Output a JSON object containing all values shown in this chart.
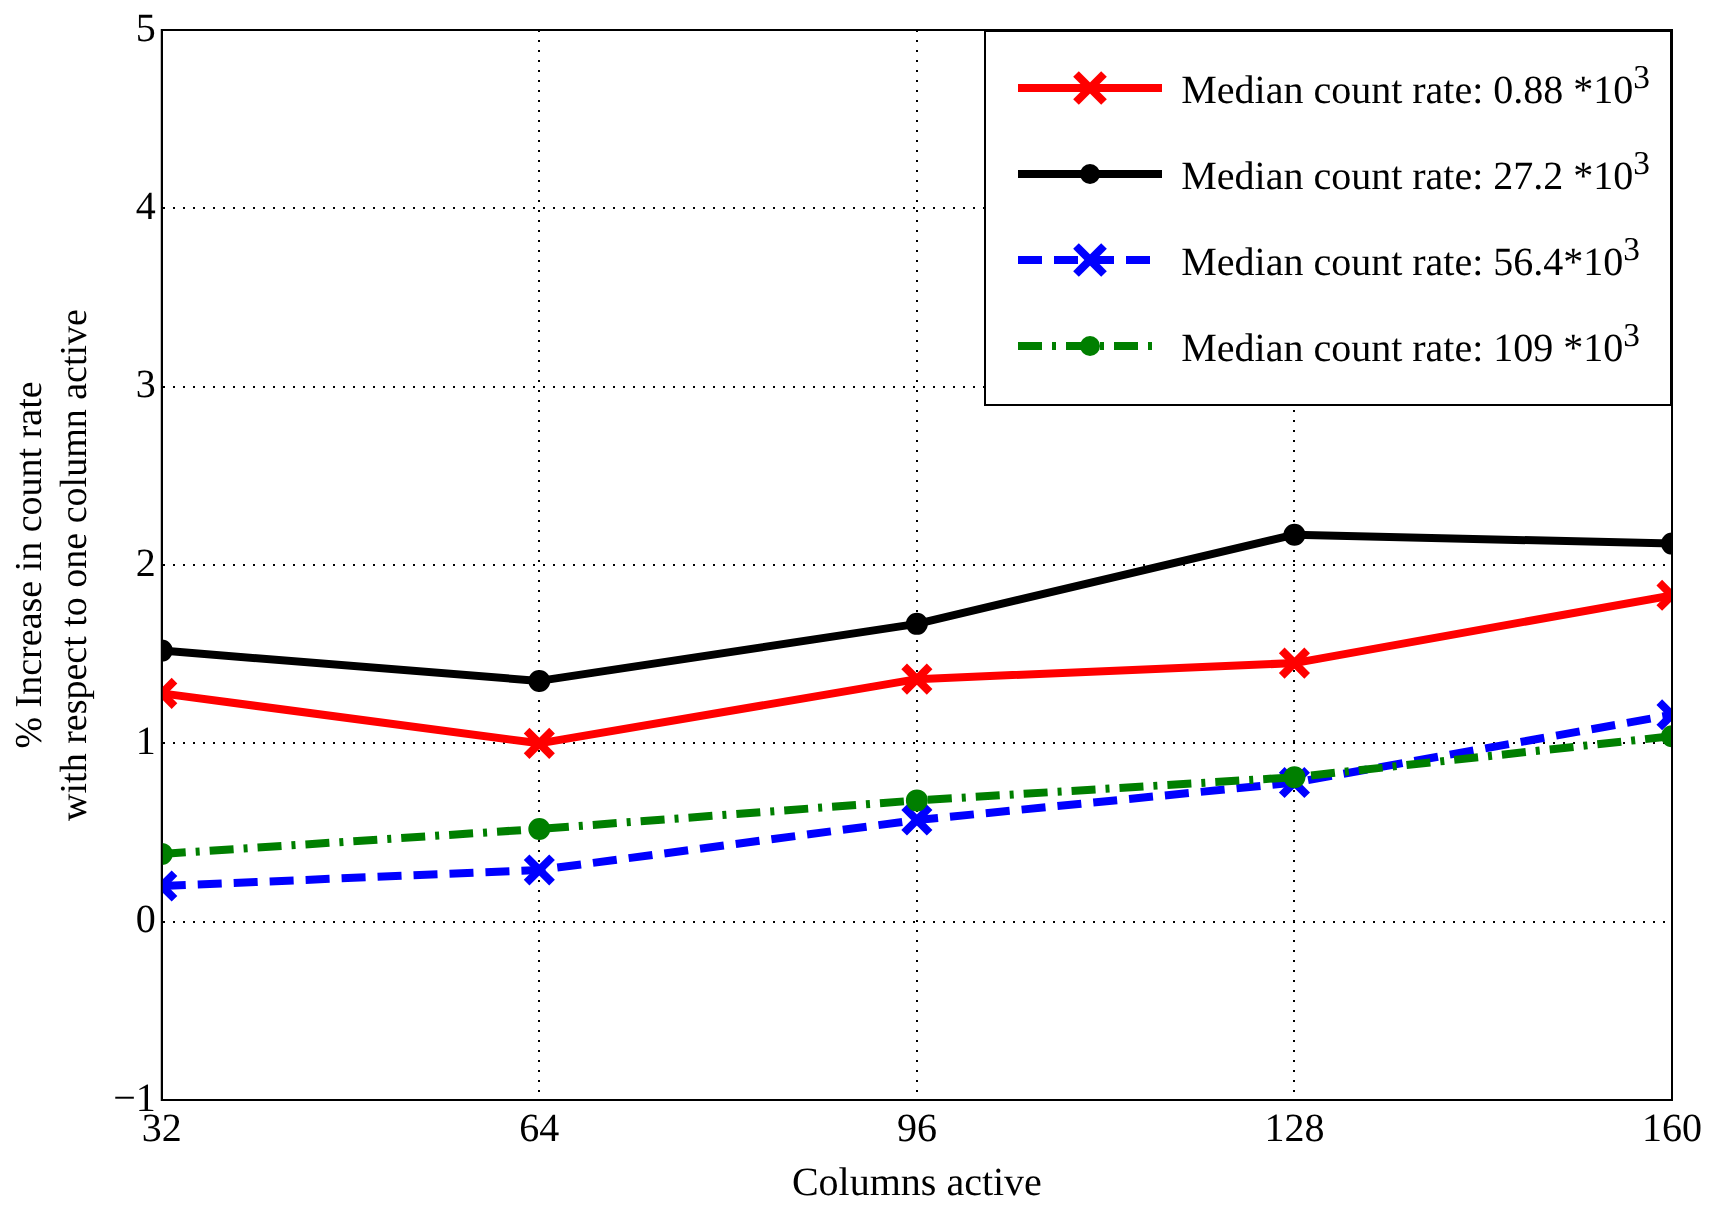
{
  "chart_data": {
    "type": "line",
    "xlabel": "Columns active",
    "ylabel": "% Increase in count rate\nwith respect to one column active",
    "x": [
      32,
      64,
      96,
      128,
      160
    ],
    "series": [
      {
        "name": "Median count rate: 0.88 *10$^{3}$",
        "color": "#ff0000",
        "marker": "cross",
        "line_style": "solid",
        "values": [
          1.28,
          1.0,
          1.36,
          1.45,
          1.83
        ]
      },
      {
        "name": "Median count rate: 27.2 *10$^{3}$",
        "color": "#000000",
        "marker": "circle",
        "line_style": "solid",
        "values": [
          1.52,
          1.35,
          1.67,
          2.17,
          2.12
        ]
      },
      {
        "name": "Median count rate: 56.4*10$^{3}$",
        "color": "#0000ff",
        "marker": "cross",
        "line_style": "dashed",
        "values": [
          0.2,
          0.29,
          0.57,
          0.78,
          1.16
        ]
      },
      {
        "name": "Median count rate: 109 *10$^{3}$",
        "color": "#007f00",
        "marker": "circle",
        "line_style": "dashdot",
        "values": [
          0.38,
          0.52,
          0.68,
          0.81,
          1.04
        ]
      }
    ],
    "xlim": [
      32,
      160
    ],
    "xticks": [
      32,
      64,
      96,
      128,
      160
    ],
    "ylim": [
      -1,
      5
    ],
    "yticks": [
      {
        "value": -1,
        "label": "−1"
      },
      0,
      1,
      2,
      3,
      4,
      5
    ],
    "grid": true,
    "legend": "top right"
  }
}
